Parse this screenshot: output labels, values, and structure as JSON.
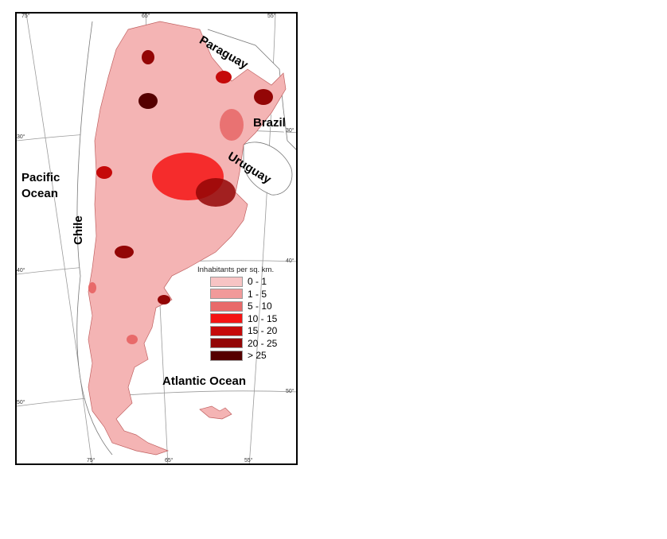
{
  "graticule": {
    "top": [
      "75°",
      "65°",
      "55°"
    ],
    "bottom": [
      "75°",
      "65°",
      "55°"
    ],
    "left": [
      "30°",
      "40°",
      "50°"
    ],
    "right": [
      "30°",
      "40°",
      "50°"
    ]
  },
  "places": {
    "paraguay": "Paraguay",
    "brazil": "Brazil",
    "uruguay": "Uruguay",
    "pacific": "Pacific\nOcean",
    "chile": "Chile",
    "atlantic": "Atlantic Ocean"
  },
  "legend": {
    "title": "Inhabitants per sq. km.",
    "classes": [
      {
        "label": "0 - 1",
        "color": "#f7c4c4"
      },
      {
        "label": "1 - 5",
        "color": "#f19a9a"
      },
      {
        "label": "5 - 10",
        "color": "#e86a6a"
      },
      {
        "label": "10 - 15",
        "color": "#f41414"
      },
      {
        "label": "15 - 20",
        "color": "#c50a0a"
      },
      {
        "label": "20 - 25",
        "color": "#930606"
      },
      {
        "label": "> 25",
        "color": "#550000"
      }
    ]
  }
}
